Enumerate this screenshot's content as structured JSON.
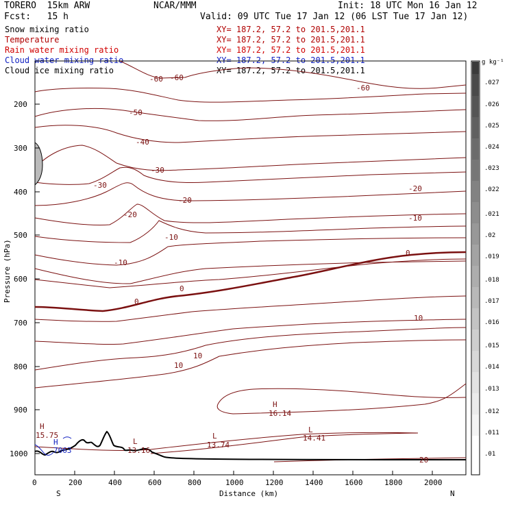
{
  "header": {
    "model": "TORERO  15km ARW",
    "center": "NCAR/MMM",
    "init": "Init: 18 UTC Mon 16 Jan 12",
    "fcst": "Fcst:   15 h",
    "valid": "Valid: 09 UTC Tue 17 Jan 12 (06 LST Tue 17 Jan 12)"
  },
  "fields": [
    {
      "name": "Snow mixing ratio",
      "xy": "XY= 187.2, 57.2 to 201.5,201.1",
      "color": "#000000",
      "xy_color": "#b00000"
    },
    {
      "name": "Temperature",
      "xy": "XY= 187.2, 57.2 to 201.5,201.1",
      "color": "#b00000",
      "xy_color": "#b00000"
    },
    {
      "name": "Rain water mixing ratio",
      "xy": "XY= 187.2, 57.2 to 201.5,201.1",
      "color": "#d00000",
      "xy_color": "#d00000"
    },
    {
      "name": "Cloud water mixing ratio",
      "xy": "XY= 187.2, 57.2 to 201.5,201.1",
      "color": "#1020c0",
      "xy_color": "#1020c0"
    },
    {
      "name": "Cloud ice mixing ratio",
      "xy": "XY= 187.2, 57.2 to 201.5,201.1",
      "color": "#000000",
      "xy_color": "#000000"
    }
  ],
  "axes": {
    "ylabel": "Pressure (hPa)",
    "xlabel": "Distance (km)",
    "yticks": [
      "200",
      "300",
      "400",
      "500",
      "600",
      "700",
      "800",
      "900",
      "1000"
    ],
    "xticks": [
      "0",
      "200",
      "400",
      "600",
      "800",
      "1000",
      "1200",
      "1400",
      "1600",
      "1800",
      "2000"
    ],
    "left_end": "S",
    "right_end": "N"
  },
  "colorbar": {
    "unit": "g kg⁻¹",
    "labels": [
      ".027",
      ".026",
      ".025",
      ".024",
      ".023",
      ".022",
      ".021",
      ".02",
      ".019",
      ".018",
      ".017",
      ".016",
      ".015",
      ".014",
      ".013",
      ".012",
      ".011",
      ".01"
    ]
  },
  "contour_labels": [
    "-60",
    "-60",
    "-60",
    "-50",
    "-40",
    "-30",
    "-30",
    "-20",
    "-20",
    "-20",
    "-10",
    "-10",
    "-10",
    "0",
    "0",
    "0",
    "10",
    "10",
    "10",
    "20"
  ],
  "extrema": [
    {
      "type": "H",
      "value": "16.14"
    },
    {
      "type": "L",
      "value": "14.41"
    },
    {
      "type": "L",
      "value": "13.74"
    },
    {
      "type": "L",
      "value": "13.16"
    },
    {
      "type": "H",
      "value": "15.75"
    },
    {
      "type": "H",
      "value": "7063"
    }
  ]
}
